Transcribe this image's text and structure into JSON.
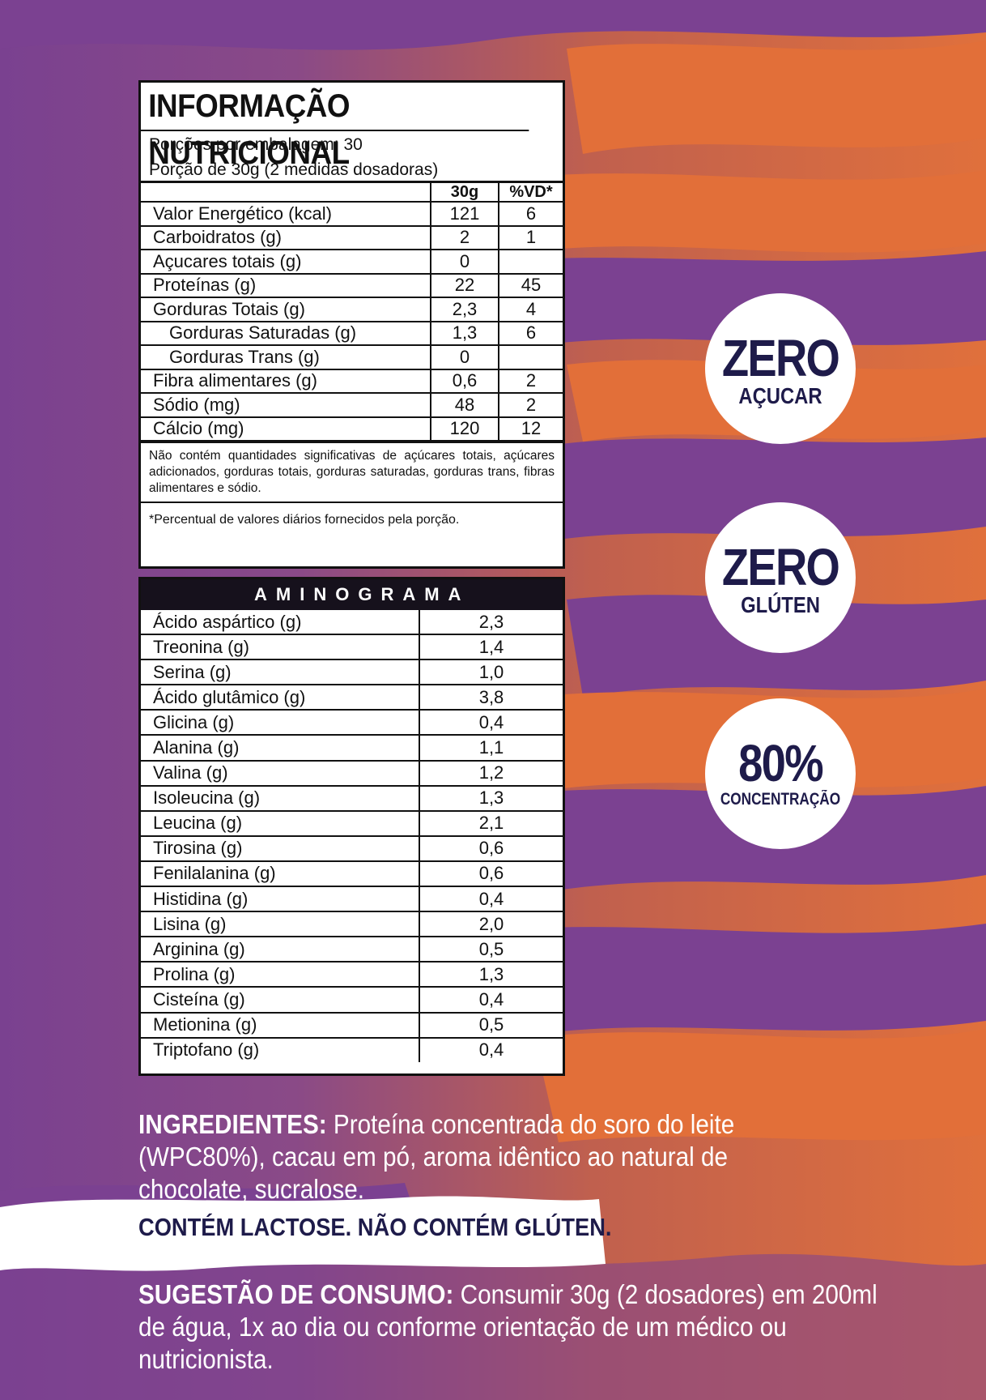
{
  "colors": {
    "purple": "#7b4191",
    "orange": "#e26f39",
    "navy": "#1e1b4a"
  },
  "nutrition": {
    "title": "INFORMAÇÃO NUTRICIONAL",
    "servings_per_package": "Porções por embalagem: 30",
    "serving_size": "Porção de 30g (2 medidas dosadoras)",
    "col_amount": "30g",
    "col_dv": "%VD*",
    "rows": [
      {
        "name": "Valor Energético (kcal)",
        "amount": "121",
        "dv": "6",
        "indent": false
      },
      {
        "name": "Carboidratos (g)",
        "amount": "2",
        "dv": "1",
        "indent": false
      },
      {
        "name": "Açucares totais (g)",
        "amount": "0",
        "dv": "",
        "indent": false
      },
      {
        "name": "Proteínas (g)",
        "amount": "22",
        "dv": "45",
        "indent": false
      },
      {
        "name": "Gorduras Totais (g)",
        "amount": "2,3",
        "dv": "4",
        "indent": false
      },
      {
        "name": "Gorduras Saturadas (g)",
        "amount": "1,3",
        "dv": "6",
        "indent": true
      },
      {
        "name": "Gorduras Trans (g)",
        "amount": "0",
        "dv": "",
        "indent": true
      },
      {
        "name": "Fibra alimentares (g)",
        "amount": "0,6",
        "dv": "2",
        "indent": false
      },
      {
        "name": "Sódio (mg)",
        "amount": "48",
        "dv": "2",
        "indent": false
      },
      {
        "name": "Cálcio (mg)",
        "amount": "120",
        "dv": "12",
        "indent": false
      }
    ],
    "note": "Não contém quantidades significativas de açúcares totais, açúcares adicionados, gorduras totais, gorduras saturadas, gorduras trans, fibras alimentares e sódio.",
    "footnote": "*Percentual de valores diários fornecidos pela porção."
  },
  "aminogram": {
    "title": "AMINOGRAMA",
    "rows": [
      {
        "name": "Ácido aspártico (g)",
        "value": "2,3"
      },
      {
        "name": "Treonina (g)",
        "value": "1,4"
      },
      {
        "name": "Serina (g)",
        "value": "1,0"
      },
      {
        "name": "Ácido glutâmico (g)",
        "value": "3,8"
      },
      {
        "name": "Glicina (g)",
        "value": "0,4"
      },
      {
        "name": "Alanina (g)",
        "value": "1,1"
      },
      {
        "name": "Valina (g)",
        "value": "1,2"
      },
      {
        "name": "Isoleucina (g)",
        "value": "1,3"
      },
      {
        "name": "Leucina (g)",
        "value": "2,1"
      },
      {
        "name": "Tirosina (g)",
        "value": "0,6"
      },
      {
        "name": "Fenilalanina (g)",
        "value": "0,6"
      },
      {
        "name": "Histidina (g)",
        "value": "0,4"
      },
      {
        "name": "Lisina (g)",
        "value": "2,0"
      },
      {
        "name": "Arginina (g)",
        "value": "0,5"
      },
      {
        "name": "Prolina (g)",
        "value": "1,3"
      },
      {
        "name": "Cisteína (g)",
        "value": "0,4"
      },
      {
        "name": "Metionina (g)",
        "value": "0,5"
      },
      {
        "name": "Triptofano (g)",
        "value": "0,4"
      }
    ]
  },
  "badges": [
    {
      "big": "ZERO",
      "small": "AÇUCAR"
    },
    {
      "big": "ZERO",
      "small": "GLÚTEN"
    },
    {
      "big": "80%",
      "small": "CONCENTRAÇÃO"
    }
  ],
  "ingredients": {
    "label": "INGREDIENTES:",
    "text": " Proteína concentrada do soro do leite (WPC80%), cacau em pó, aroma idêntico ao natural de chocolate, sucralose."
  },
  "lactose": "CONTÉM LACTOSE. NÃO CONTÉM GLÚTEN.",
  "suggestion": {
    "label": "SUGESTÃO DE CONSUMO:",
    "text": " Consumir 30g (2 dosadores) em 200ml de água, 1x ao dia ou conforme orientação de um médico ou nutricionista."
  }
}
